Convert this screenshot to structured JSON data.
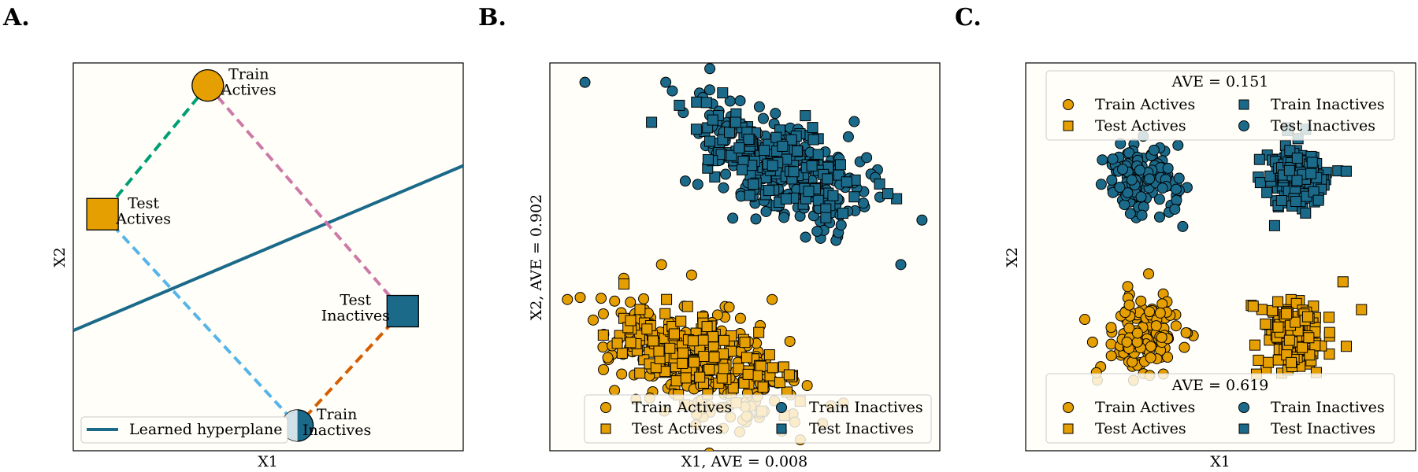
{
  "chart_data": [
    {
      "type": "scatter",
      "panel_letter": "A.",
      "xlabel": "X1",
      "ylabel": "X2",
      "xlim": [
        0,
        1
      ],
      "ylim": [
        0,
        1
      ],
      "points": [
        {
          "label_lines": [
            "Train",
            "Actives"
          ],
          "x": 0.345,
          "y": 0.942,
          "marker": "circle",
          "color": "#e69f00"
        },
        {
          "label_lines": [
            "Test",
            "Actives"
          ],
          "x": 0.075,
          "y": 0.61,
          "marker": "square",
          "color": "#e69f00"
        },
        {
          "label_lines": [
            "Test",
            "Inactives"
          ],
          "x": 0.845,
          "y": 0.36,
          "marker": "square",
          "color": "#1b6a8a"
        },
        {
          "label_lines": [
            "Train",
            "Inactives"
          ],
          "x": 0.575,
          "y": 0.065,
          "marker": "circle_half_faded",
          "color": "#1b6a8a"
        }
      ],
      "distance_lines": [
        {
          "from": 0,
          "to": 1,
          "color": "#009e73"
        },
        {
          "from": 0,
          "to": 2,
          "color": "#cc79a7"
        },
        {
          "from": 1,
          "to": 3,
          "color": "#56b4e9"
        },
        {
          "from": 2,
          "to": 3,
          "color": "#d55e00"
        }
      ],
      "hyperplane": {
        "name": "Learned hyperplane",
        "x": [
          0,
          1
        ],
        "y": [
          0.31,
          0.735
        ],
        "color": "#1b6a8a"
      },
      "legend": [
        "Learned hyperplane"
      ],
      "legend_position": "lower left"
    },
    {
      "type": "scatter",
      "panel_letter": "B.",
      "xlabel": "X1, AVE = 0.008",
      "ylabel": "X2, AVE = 0.902",
      "xlim": [
        0,
        1
      ],
      "ylim": [
        0,
        1
      ],
      "legend_position": "lower right",
      "legend": [
        "Train Actives",
        "Test Actives",
        "Train Inactives",
        "Test Inactives"
      ],
      "series": [
        {
          "name": "Train Actives",
          "marker": "circle",
          "color": "#e69f00",
          "cluster": {
            "cx": 0.39,
            "cy": 0.22,
            "sx": 0.12,
            "sy": 0.07,
            "tilt": -0.3,
            "n": 260
          }
        },
        {
          "name": "Test Actives",
          "marker": "square",
          "color": "#e69f00",
          "cluster": {
            "cx": 0.38,
            "cy": 0.25,
            "sx": 0.1,
            "sy": 0.05,
            "tilt": -0.25,
            "n": 160
          }
        },
        {
          "name": "Train Inactives",
          "marker": "circle",
          "color": "#1b6a8a",
          "cluster": {
            "cx": 0.6,
            "cy": 0.73,
            "sx": 0.12,
            "sy": 0.07,
            "tilt": -0.45,
            "n": 260
          }
        },
        {
          "name": "Test Inactives",
          "marker": "square",
          "color": "#1b6a8a",
          "cluster": {
            "cx": 0.58,
            "cy": 0.74,
            "sx": 0.1,
            "sy": 0.05,
            "tilt": -0.4,
            "n": 170
          }
        }
      ],
      "outliers": [
        {
          "series": "Train Inactives",
          "x": 0.09,
          "y": 0.95
        },
        {
          "series": "Train Inactives",
          "x": 0.9,
          "y": 0.48
        },
        {
          "series": "Train Actives",
          "x": 0.045,
          "y": 0.39
        },
        {
          "series": "Test Actives",
          "x": 0.19,
          "y": 0.43
        },
        {
          "series": "Train Actives",
          "x": 0.57,
          "y": 0.39
        }
      ]
    },
    {
      "type": "scatter",
      "panel_letter": "C.",
      "xlabel": "X1",
      "ylabel": "X2",
      "xlim": [
        0,
        1
      ],
      "ylim": [
        0,
        1
      ],
      "legends": [
        {
          "title": "AVE = 0.151",
          "position": "upper center",
          "entries": [
            "Train Actives",
            "Train Inactives",
            "Test Actives",
            "Test Inactives"
          ]
        },
        {
          "title": "AVE = 0.619",
          "position": "lower center",
          "entries": [
            "Train Actives",
            "Train Inactives",
            "Test Actives",
            "Test Inactives"
          ]
        }
      ],
      "series": [
        {
          "name": "Train Actives",
          "marker": "circle",
          "color": "#e69f00",
          "cluster": {
            "cx": 0.3,
            "cy": 0.3,
            "sx": 0.045,
            "sy": 0.05,
            "tilt": 0,
            "n": 140
          }
        },
        {
          "name": "Test Actives",
          "marker": "square",
          "color": "#e69f00",
          "cluster": {
            "cx": 0.69,
            "cy": 0.3,
            "sx": 0.045,
            "sy": 0.045,
            "tilt": 0,
            "n": 140
          }
        },
        {
          "name": "Train Inactives",
          "marker": "circle",
          "color": "#1b6a8a",
          "cluster": {
            "cx": 0.3,
            "cy": 0.7,
            "sx": 0.045,
            "sy": 0.05,
            "tilt": 0,
            "n": 140
          }
        },
        {
          "name": "Test Inactives",
          "marker": "square",
          "color": "#1b6a8a",
          "cluster": {
            "cx": 0.69,
            "cy": 0.7,
            "sx": 0.045,
            "sy": 0.045,
            "tilt": 0,
            "n": 140
          }
        }
      ]
    }
  ]
}
